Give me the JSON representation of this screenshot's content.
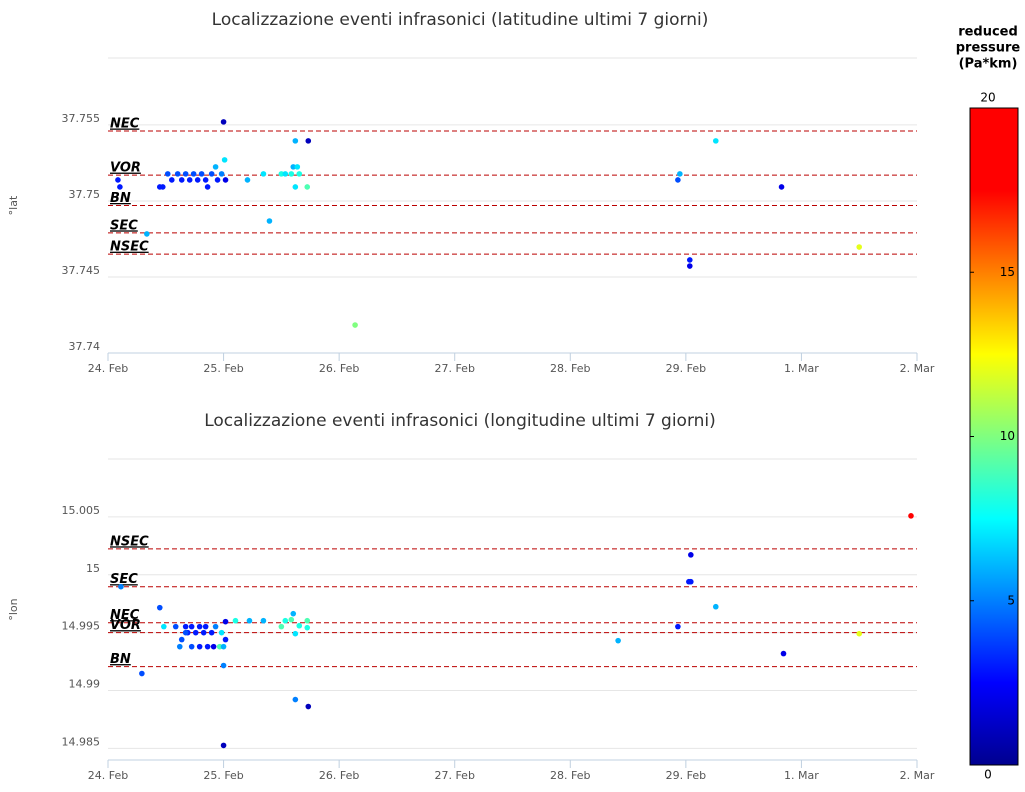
{
  "chart_data": [
    {
      "type": "scatter",
      "title": "Localizzazione eventi infrasonici (latitudine ultimi 7 giorni)",
      "y_label": "°lat",
      "x": [
        1.0,
        1.621,
        1.733,
        0.086,
        0.103,
        0.448,
        0.474,
        0.517,
        0.552,
        0.603,
        0.638,
        0.672,
        0.707,
        0.741,
        0.776,
        0.81,
        0.845,
        0.862,
        0.897,
        0.931,
        0.948,
        0.983,
        1.009,
        1.017,
        1.207,
        1.345,
        1.397,
        1.5,
        1.534,
        1.586,
        1.603,
        1.621,
        1.638,
        1.655,
        1.724,
        0.336,
        2.138,
        4.931,
        4.948,
        5.034,
        5.034,
        5.259,
        5.828,
        6.5
      ],
      "y": [
        37.7552,
        37.75395,
        37.75395,
        37.75138,
        37.75092,
        37.75092,
        37.75092,
        37.75178,
        37.75138,
        37.75178,
        37.75138,
        37.75178,
        37.75138,
        37.75178,
        37.75138,
        37.75178,
        37.75138,
        37.75092,
        37.75178,
        37.75224,
        37.75138,
        37.75178,
        37.7527,
        37.75138,
        37.75138,
        37.75178,
        37.74868,
        37.75178,
        37.75178,
        37.75178,
        37.75224,
        37.75092,
        37.75224,
        37.75178,
        37.75092,
        37.74783,
        37.74184,
        37.75138,
        37.75178,
        37.74612,
        37.74572,
        37.75395,
        37.75092,
        37.74697
      ],
      "color_values": [
        1,
        6,
        1,
        3,
        3,
        3,
        3,
        4,
        3,
        4,
        3,
        4,
        3,
        4,
        3,
        4,
        3,
        3,
        4,
        6,
        3,
        5,
        7,
        2,
        6,
        7,
        6,
        8,
        7,
        8,
        6,
        7,
        7,
        8,
        9,
        6,
        10,
        4,
        6,
        3,
        2,
        7,
        2,
        12
      ],
      "xlim": [
        0,
        7
      ],
      "xticks": [
        {
          "value": 0,
          "label": "24. Feb"
        },
        {
          "value": 1,
          "label": "25. Feb"
        },
        {
          "value": 2,
          "label": "26. Feb"
        },
        {
          "value": 3,
          "label": "27. Feb"
        },
        {
          "value": 4,
          "label": "28. Feb"
        },
        {
          "value": 5,
          "label": "29. Feb"
        },
        {
          "value": 6,
          "label": "1. Mar"
        },
        {
          "value": 7,
          "label": "2. Mar"
        }
      ],
      "ylim": [
        37.74,
        37.7594
      ],
      "yticks": [
        37.74,
        37.745,
        37.75,
        37.755
      ],
      "reference_lines": [
        {
          "name": "NEC",
          "value": 37.7546
        },
        {
          "name": "VOR",
          "value": 37.7517
        },
        {
          "name": "BN",
          "value": 37.7497
        },
        {
          "name": "SEC",
          "value": 37.7479
        },
        {
          "name": "NSEC",
          "value": 37.7465
        }
      ]
    },
    {
      "type": "scatter",
      "title": "Localizzazione eventi infrasonici (longitudine ultimi 7 giorni)",
      "y_label": "°lon",
      "x": [
        6.948,
        0.112,
        5.043,
        5.043,
        5.026,
        0.448,
        5.259,
        0.483,
        0.586,
        0.672,
        0.69,
        0.724,
        0.759,
        0.793,
        0.828,
        0.845,
        0.897,
        0.931,
        0.983,
        1.017,
        0.638,
        0.672,
        0.621,
        0.724,
        0.793,
        0.862,
        0.914,
        0.966,
        1.0,
        1.017,
        1.103,
        1.224,
        1.345,
        1.5,
        1.534,
        1.586,
        1.603,
        1.621,
        1.655,
        1.724,
        1.724,
        4.414,
        4.931,
        5.845,
        6.5,
        1.0,
        0.293,
        1.621,
        1.733,
        1.0
      ],
      "y": [
        15.00509,
        14.99897,
        15.00172,
        14.9994,
        14.9994,
        14.99716,
        14.99724,
        14.99552,
        14.99552,
        14.99552,
        14.995,
        14.99552,
        14.995,
        14.99552,
        14.995,
        14.99552,
        14.995,
        14.99552,
        14.995,
        14.99595,
        14.9944,
        14.995,
        14.99379,
        14.99379,
        14.99379,
        14.99379,
        14.99379,
        14.99379,
        14.99379,
        14.9944,
        14.99603,
        14.99603,
        14.99603,
        14.99552,
        14.99603,
        14.99612,
        14.99664,
        14.99491,
        14.9956,
        14.99603,
        14.99543,
        14.99431,
        14.99552,
        14.99319,
        14.99491,
        14.99216,
        14.99147,
        14.98922,
        14.98862,
        14.98526
      ],
      "color_values": [
        19,
        5,
        2,
        3,
        3,
        4,
        6,
        7,
        4,
        3,
        3,
        3,
        3,
        3,
        3,
        3,
        3,
        5,
        7,
        2,
        4,
        4,
        5,
        4,
        3,
        3,
        2,
        9,
        6,
        3,
        8,
        6,
        6,
        9,
        8,
        9,
        6,
        7,
        8,
        9,
        8,
        6,
        3,
        2,
        12,
        5,
        4,
        5,
        1,
        1
      ],
      "xlim": [
        0,
        7
      ],
      "xticks": [
        {
          "value": 0,
          "label": "24. Feb"
        },
        {
          "value": 1,
          "label": "25. Feb"
        },
        {
          "value": 2,
          "label": "26. Feb"
        },
        {
          "value": 3,
          "label": "27. Feb"
        },
        {
          "value": 4,
          "label": "28. Feb"
        },
        {
          "value": 5,
          "label": "29. Feb"
        },
        {
          "value": 6,
          "label": "1. Mar"
        },
        {
          "value": 7,
          "label": "2. Mar"
        }
      ],
      "ylim": [
        14.984,
        15.01
      ],
      "yticks": [
        14.985,
        14.99,
        14.995,
        15,
        15.005
      ],
      "reference_lines": [
        {
          "name": "NSEC",
          "value": 15.00224
        },
        {
          "name": "SEC",
          "value": 14.99897
        },
        {
          "name": "NEC",
          "value": 14.99586
        },
        {
          "name": "VOR",
          "value": 14.995
        },
        {
          "name": "BN",
          "value": 14.99207
        }
      ]
    }
  ],
  "colorbar": {
    "title": [
      "reduced",
      "pressure",
      "(Pa*km)"
    ],
    "lim": [
      0,
      20
    ],
    "ticks": [
      0,
      5,
      10,
      15,
      20
    ]
  }
}
